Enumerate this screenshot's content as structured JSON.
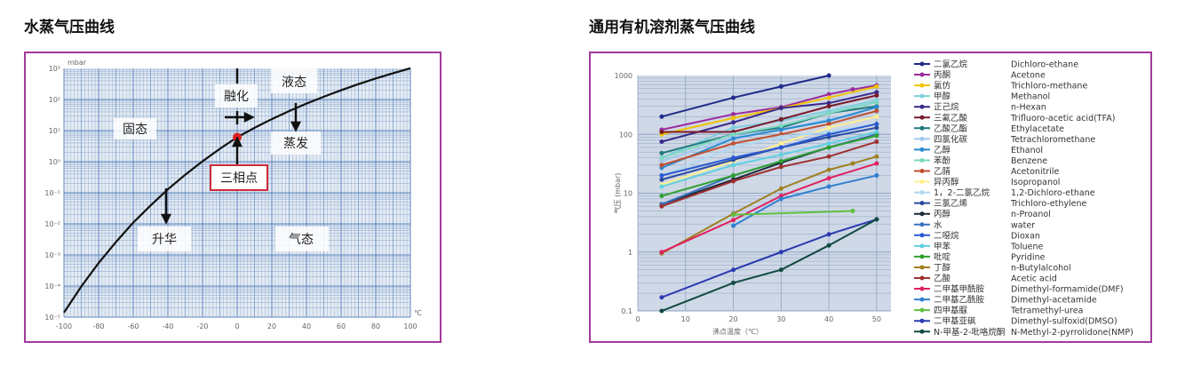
{
  "left": {
    "title": "水蒸气压曲线",
    "labels": {
      "solid": "固态",
      "liquid": "液态",
      "melting": "融化",
      "evaporation": "蒸发",
      "triple_point": "三相点",
      "sublimation": "升华",
      "gas": "气态"
    },
    "colors": {
      "frame": "#a23a9a",
      "curve": "#111111",
      "triple_point": "#e02020",
      "grid": "#4a78b8"
    }
  },
  "right": {
    "title": "通用有机溶剂蒸气压曲线"
  },
  "chart_data": [
    {
      "type": "line",
      "title": "水蒸气压曲线",
      "xlabel": "℃",
      "ylabel": "mbar",
      "xlim": [
        -100,
        100
      ],
      "ylim": [
        1e-05,
        1000
      ],
      "yscale": "log",
      "grid": true,
      "x_ticks": [
        "-100",
        "-80",
        "-60",
        "-40",
        "-20",
        "0",
        "20",
        "40",
        "60",
        "80",
        "100"
      ],
      "y_ticks": [
        "10³",
        "10²",
        "10¹",
        "10⁰",
        "10⁻¹",
        "10⁻²",
        "10⁻³",
        "10⁻⁴",
        "10⁻⁵"
      ],
      "series": [
        {
          "x": [
            -100,
            -90,
            -80,
            -70,
            -60,
            -50,
            -40,
            -30,
            -20,
            -10,
            0,
            10,
            20,
            30,
            40,
            50,
            60,
            70,
            80,
            90,
            100
          ],
          "y": [
            1.4e-05,
            9.7e-05,
            0.00055,
            0.0026,
            0.011,
            0.039,
            0.13,
            0.38,
            1.03,
            2.6,
            6.1,
            12.3,
            23.4,
            42.4,
            73.8,
            123,
            199,
            312,
            474,
            701,
            1013
          ]
        }
      ],
      "annotations": [
        {
          "label": "三相点",
          "x": 0.01,
          "y": 6.1
        }
      ]
    },
    {
      "type": "line",
      "title": "通用有机溶剂蒸气压曲线",
      "xlabel": "沸点温度（℃）",
      "ylabel": "气压 (mbar)",
      "xlim": [
        0,
        53
      ],
      "ylim": [
        0.1,
        1000
      ],
      "yscale": "log",
      "grid": true,
      "legend": "right",
      "x_ticks": [
        "0",
        "10",
        "20",
        "30",
        "40",
        "50"
      ],
      "y_ticks": [
        "1000",
        "100",
        "10",
        "1",
        "0.1"
      ],
      "series": [
        {
          "name": "二氯乙烷",
          "name_en": "Dichloro-ethane",
          "color": "#1f2a8a",
          "x": [
            5,
            20,
            30,
            40
          ],
          "y": [
            200,
            420,
            650,
            1000
          ]
        },
        {
          "name": "丙酮",
          "name_en": "Acetone",
          "color": "#9b2aa0",
          "x": [
            5,
            20,
            30,
            40,
            45,
            50
          ],
          "y": [
            120,
            220,
            290,
            480,
            580,
            680
          ]
        },
        {
          "name": "氯仿",
          "name_en": "Trichloro-methane",
          "color": "#f2c200",
          "x": [
            5,
            20,
            30,
            40,
            50
          ],
          "y": [
            100,
            190,
            280,
            420,
            650
          ]
        },
        {
          "name": "甲醇",
          "name_en": "Methanol",
          "color": "#7fcfe0",
          "x": [
            5,
            20,
            30,
            40,
            50
          ],
          "y": [
            40,
            130,
            170,
            250,
            380
          ]
        },
        {
          "name": "正己烷",
          "name_en": "n-Hexan",
          "color": "#3a2a8a",
          "x": [
            5,
            20,
            30,
            40,
            50
          ],
          "y": [
            75,
            160,
            280,
            340,
            520
          ]
        },
        {
          "name": "三氟乙酸",
          "name_en": "Trifluoro-acetic acid(TFA)",
          "color": "#7a1a2a",
          "x": [
            5,
            20,
            30,
            40,
            50
          ],
          "y": [
            110,
            110,
            180,
            300,
            460
          ]
        },
        {
          "name": "乙酸乙酯",
          "name_en": "Ethylacetate",
          "color": "#1e7a7a",
          "x": [
            5,
            20,
            30,
            40,
            50
          ],
          "y": [
            48,
            100,
            130,
            230,
            300
          ]
        },
        {
          "name": "四氯化碳",
          "name_en": "Tetrachloromethane",
          "color": "#a0c8f0",
          "x": [
            5,
            20,
            30,
            40,
            50
          ],
          "y": [
            35,
            90,
            120,
            180,
            240
          ]
        },
        {
          "name": "乙醇",
          "name_en": "Ethanol",
          "color": "#2a8ad0",
          "x": [
            5,
            20,
            30,
            40,
            50
          ],
          "y": [
            27,
            85,
            120,
            170,
            290
          ]
        },
        {
          "name": "苯酚",
          "name_en": "Benzene",
          "color": "#7fd8c0",
          "x": [
            5,
            20,
            30,
            40,
            50
          ],
          "y": [
            40,
            100,
            140,
            230,
            350
          ]
        },
        {
          "name": "乙腈",
          "name_en": "Acetonitrile",
          "color": "#c05030",
          "x": [
            5,
            20,
            30,
            40,
            50
          ],
          "y": [
            30,
            70,
            100,
            150,
            250
          ]
        },
        {
          "name": "异丙醇",
          "name_en": "Isopropanol",
          "color": "#fff090",
          "x": [
            5,
            20,
            30,
            40,
            50
          ],
          "y": [
            14,
            35,
            70,
            130,
            200
          ]
        },
        {
          "name": "1，2-二氯乙烷",
          "name_en": "1,2-Dichloro-ethane",
          "color": "#b0d8f0",
          "x": [
            5,
            20,
            30,
            40,
            50
          ],
          "y": [
            20,
            60,
            90,
            110,
            150
          ]
        },
        {
          "name": "三氯乙烯",
          "name_en": "Trichloro-ethylene",
          "color": "#2a4aa0",
          "x": [
            5,
            20,
            30,
            40,
            50
          ],
          "y": [
            17,
            37,
            60,
            90,
            130
          ]
        },
        {
          "name": "丙醇",
          "name_en": "n-Proanol",
          "color": "#1a2a3a",
          "x": [
            5,
            20,
            30,
            40,
            50
          ],
          "y": [
            6.5,
            17,
            33,
            60,
            100
          ]
        },
        {
          "name": "水",
          "name_en": "water",
          "color": "#3a70c0",
          "x": [
            5,
            20,
            30,
            40,
            50
          ],
          "y": [
            6.5,
            20,
            35,
            60,
            100
          ]
        },
        {
          "name": "二噁烷",
          "name_en": "Dioxan",
          "color": "#2a5ad0",
          "x": [
            5,
            20,
            30,
            40,
            50
          ],
          "y": [
            20,
            40,
            60,
            100,
            150
          ]
        },
        {
          "name": "甲苯",
          "name_en": "Toluene",
          "color": "#60d0e0",
          "x": [
            5,
            20,
            30,
            40,
            50
          ],
          "y": [
            13,
            30,
            45,
            70,
            110
          ]
        },
        {
          "name": "吡啶",
          "name_en": "Pyridine",
          "color": "#30a030",
          "x": [
            5,
            20,
            30,
            40,
            50
          ],
          "y": [
            9,
            20,
            35,
            60,
            95
          ]
        },
        {
          "name": "丁醇",
          "name_en": "n-Butylalcohol",
          "color": "#a08020",
          "x": [
            5,
            20,
            30,
            40,
            45,
            50
          ],
          "y": [
            0.95,
            4.5,
            12,
            25,
            32,
            42
          ]
        },
        {
          "name": "乙酸",
          "name_en": "Acetic acid",
          "color": "#a03030",
          "x": [
            5,
            20,
            30,
            40,
            50
          ],
          "y": [
            6,
            16,
            28,
            42,
            75
          ]
        },
        {
          "name": "二甲基甲酰胺",
          "name_en": "Dimethyl-formamide(DMF)",
          "color": "#e02060",
          "x": [
            5,
            20,
            30,
            40,
            50
          ],
          "y": [
            1.0,
            3.5,
            9,
            18,
            32
          ]
        },
        {
          "name": "二甲基乙酰胺",
          "name_en": "Dimethyl-acetamide",
          "color": "#3080d0",
          "x": [
            20,
            30,
            40,
            50
          ],
          "y": [
            2.8,
            8,
            13,
            20
          ]
        },
        {
          "name": "四甲基脲",
          "name_en": "Tetramethyl-urea",
          "color": "#60c040",
          "x": [
            20,
            45
          ],
          "y": [
            4.3,
            5
          ]
        },
        {
          "name": "二甲基亚砜",
          "name_en": "Dimethyl-sulfoxid(DMSO)",
          "color": "#2a3ab0",
          "x": [
            5,
            20,
            30,
            40,
            50
          ],
          "y": [
            0.17,
            0.5,
            1.0,
            2.0,
            3.6
          ]
        },
        {
          "name": "N-甲基-2-吡咯烷酮",
          "name_en": "N-Methyl-2-pyrrolidone(NMP)",
          "color": "#104a40",
          "x": [
            5,
            20,
            30,
            40,
            50
          ],
          "y": [
            0.1,
            0.3,
            0.5,
            1.3,
            3.6
          ]
        }
      ]
    }
  ]
}
